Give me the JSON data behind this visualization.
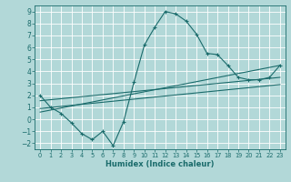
{
  "title": "",
  "xlabel": "Humidex (Indice chaleur)",
  "xlim": [
    -0.5,
    23.5
  ],
  "ylim": [
    -2.5,
    9.5
  ],
  "xticks": [
    0,
    1,
    2,
    3,
    4,
    5,
    6,
    7,
    8,
    9,
    10,
    11,
    12,
    13,
    14,
    15,
    16,
    17,
    18,
    19,
    20,
    21,
    22,
    23
  ],
  "yticks": [
    -2,
    -1,
    0,
    1,
    2,
    3,
    4,
    5,
    6,
    7,
    8,
    9
  ],
  "bg_color": "#b2d8d8",
  "grid_color": "#ffffff",
  "line_color": "#1a6b6b",
  "main_curve_x": [
    0,
    1,
    2,
    3,
    4,
    5,
    6,
    7,
    8,
    9,
    10,
    11,
    12,
    13,
    14,
    15,
    16,
    17,
    18,
    19,
    20,
    21,
    22,
    23
  ],
  "main_curve_y": [
    2.0,
    1.0,
    0.5,
    -0.3,
    -1.2,
    -1.7,
    -1.0,
    -2.2,
    -0.2,
    3.1,
    6.2,
    7.7,
    9.0,
    8.8,
    8.2,
    7.1,
    5.5,
    5.4,
    4.5,
    3.5,
    3.3,
    3.3,
    3.5,
    4.5
  ],
  "trend1_x": [
    0,
    23
  ],
  "trend1_y": [
    1.55,
    3.5
  ],
  "trend2_x": [
    0,
    23
  ],
  "trend2_y": [
    0.9,
    2.9
  ],
  "trend3_x": [
    0,
    23
  ],
  "trend3_y": [
    0.6,
    4.5
  ]
}
